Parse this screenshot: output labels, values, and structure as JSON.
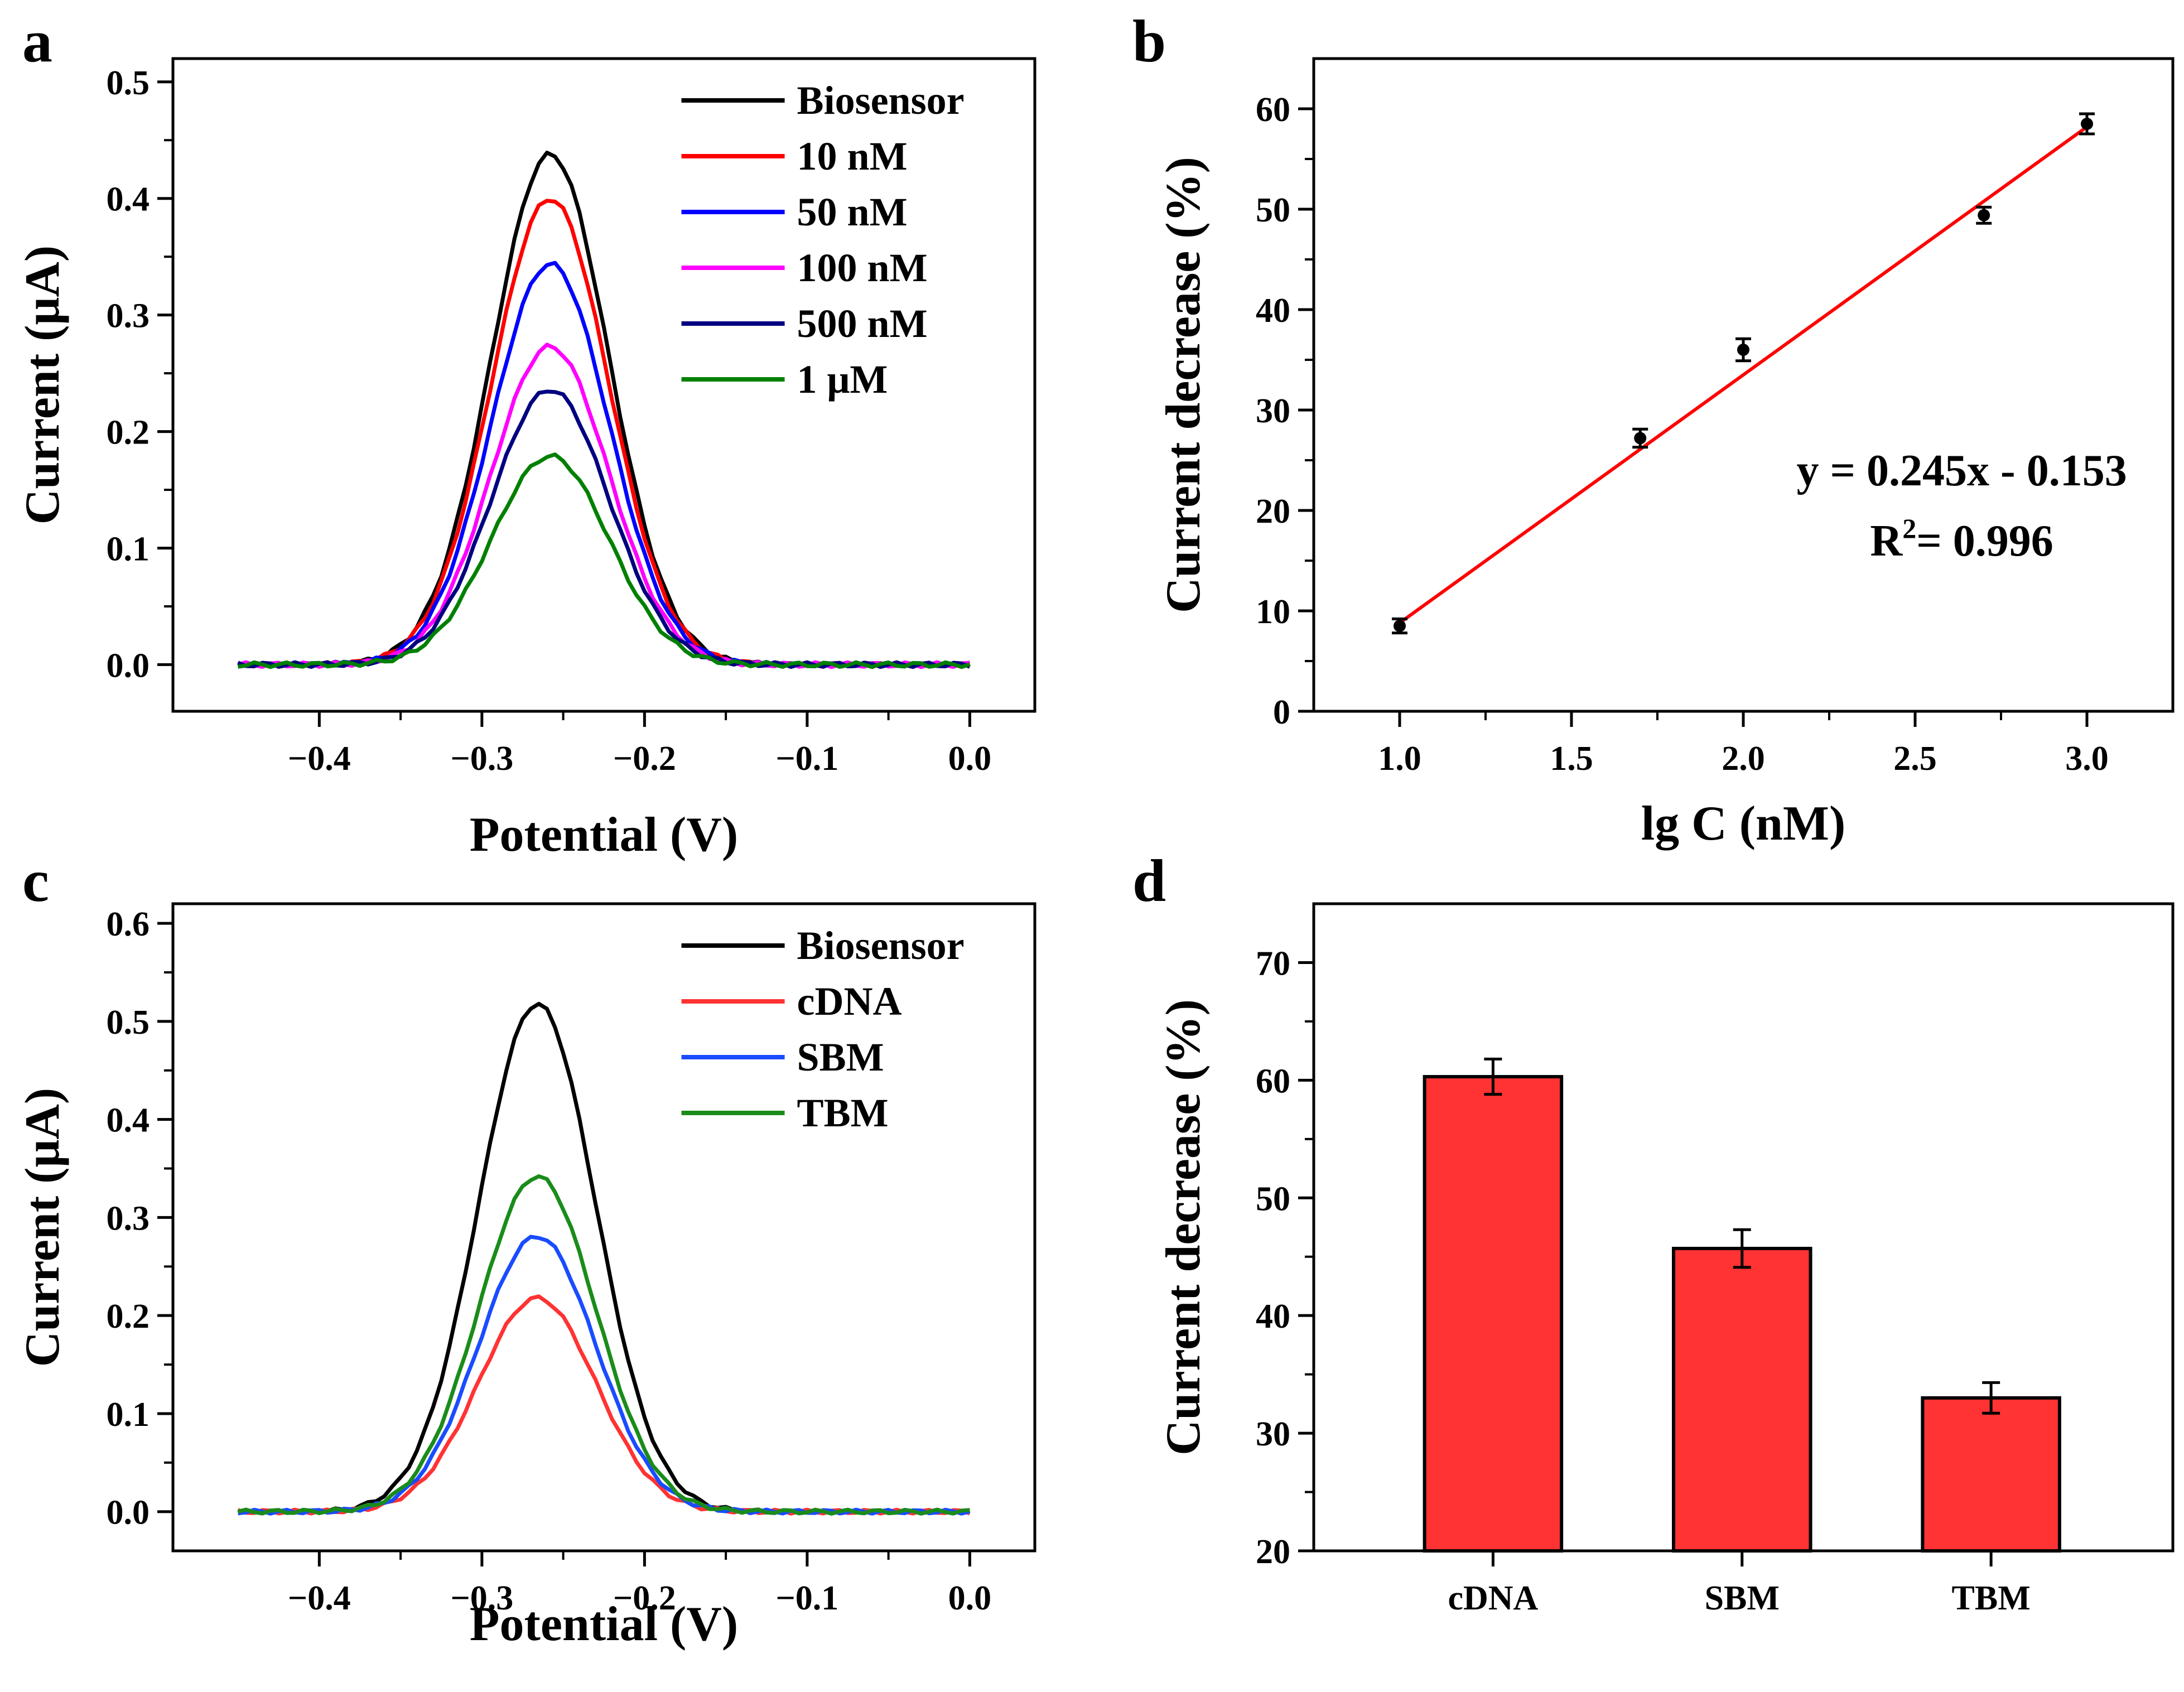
{
  "chart_data": [
    {
      "id": "a",
      "panel_label": "a",
      "type": "line",
      "xlabel": "Potential (V)",
      "ylabel": "Current (μA)",
      "xlim": [
        -0.49,
        0.04
      ],
      "ylim": [
        -0.04,
        0.52
      ],
      "xticks": [
        -0.4,
        -0.3,
        -0.2,
        -0.1,
        0.0
      ],
      "xtick_labels": [
        "−0.4",
        "−0.3",
        "−0.2",
        "−0.1",
        "0.0"
      ],
      "yticks": [
        0.0,
        0.1,
        0.2,
        0.3,
        0.4,
        0.5
      ],
      "ytick_labels": [
        "0.0",
        "0.1",
        "0.2",
        "0.3",
        "0.4",
        "0.5"
      ],
      "legend_position": "top-right",
      "peak_center": -0.258,
      "peak_width": 0.036,
      "series": [
        {
          "name": "Biosensor",
          "color": "#000000",
          "peak": 0.438
        },
        {
          "name": "10 nM",
          "color": "#ff0000",
          "peak": 0.4
        },
        {
          "name": "50 nM",
          "color": "#0000ff",
          "peak": 0.344
        },
        {
          "name": "100 nM",
          "color": "#ff00ff",
          "peak": 0.273
        },
        {
          "name": "500 nM",
          "color": "#000080",
          "peak": 0.236
        },
        {
          "name": "1 μM",
          "color": "#008000",
          "peak": 0.179
        }
      ]
    },
    {
      "id": "b",
      "panel_label": "b",
      "type": "scatter",
      "xlabel": "lg C (nM)",
      "ylabel": "Current decrease (%)",
      "xlim": [
        0.75,
        3.25
      ],
      "ylim": [
        0,
        65
      ],
      "xticks": [
        1.0,
        1.5,
        2.0,
        2.5,
        3.0
      ],
      "xtick_labels": [
        "1.0",
        "1.5",
        "2.0",
        "2.5",
        "3.0"
      ],
      "yticks": [
        0,
        10,
        20,
        30,
        40,
        50,
        60
      ],
      "ytick_labels": [
        "0",
        "10",
        "20",
        "30",
        "40",
        "50",
        "60"
      ],
      "points": [
        {
          "x": 1.0,
          "y": 8.5,
          "err": 0.7
        },
        {
          "x": 1.7,
          "y": 27.2,
          "err": 0.9
        },
        {
          "x": 2.0,
          "y": 36.0,
          "err": 1.1
        },
        {
          "x": 2.7,
          "y": 49.4,
          "err": 0.8
        },
        {
          "x": 3.0,
          "y": 58.5,
          "err": 1.0
        }
      ],
      "fit": {
        "x": [
          1.0,
          3.0
        ],
        "y": [
          8.8,
          58.2
        ],
        "color": "#ff0000"
      },
      "equation": "y = 0.245x - 0.153",
      "r2_label": "R",
      "r2_sup": "2",
      "r2_value": "= 0.996"
    },
    {
      "id": "c",
      "panel_label": "c",
      "type": "line",
      "xlabel": "Potential (V)",
      "ylabel": "Current (μA)",
      "xlim": [
        -0.49,
        0.04
      ],
      "ylim": [
        -0.04,
        0.62
      ],
      "xticks": [
        -0.4,
        -0.3,
        -0.2,
        -0.1,
        0.0
      ],
      "xtick_labels": [
        "−0.4",
        "−0.3",
        "−0.2",
        "−0.1",
        "0.0"
      ],
      "yticks": [
        0.0,
        0.1,
        0.2,
        0.3,
        0.4,
        0.5,
        0.6
      ],
      "ytick_labels": [
        "0.0",
        "0.1",
        "0.2",
        "0.3",
        "0.4",
        "0.5",
        "0.6"
      ],
      "legend_position": "top-right",
      "peak_center": -0.266,
      "peak_width": 0.036,
      "series": [
        {
          "name": "Biosensor",
          "color": "#000000",
          "peak": 0.518
        },
        {
          "name": "cDNA",
          "color": "#ff3333",
          "peak": 0.218
        },
        {
          "name": "SBM",
          "color": "#1a4cff",
          "peak": 0.281
        },
        {
          "name": "TBM",
          "color": "#1a8c1a",
          "peak": 0.342
        }
      ]
    },
    {
      "id": "d",
      "panel_label": "d",
      "type": "bar",
      "xlabel": "",
      "ylabel": "Current decrease (%)",
      "ylim": [
        20,
        75
      ],
      "yticks": [
        20,
        30,
        40,
        50,
        60,
        70
      ],
      "ytick_labels": [
        "20",
        "30",
        "40",
        "50",
        "60",
        "70"
      ],
      "categories": [
        "cDNA",
        "SBM",
        "TBM"
      ],
      "values": [
        60.3,
        45.7,
        33.0
      ],
      "errors": [
        1.5,
        1.6,
        1.3
      ],
      "bar_color": "#ff3333"
    }
  ]
}
